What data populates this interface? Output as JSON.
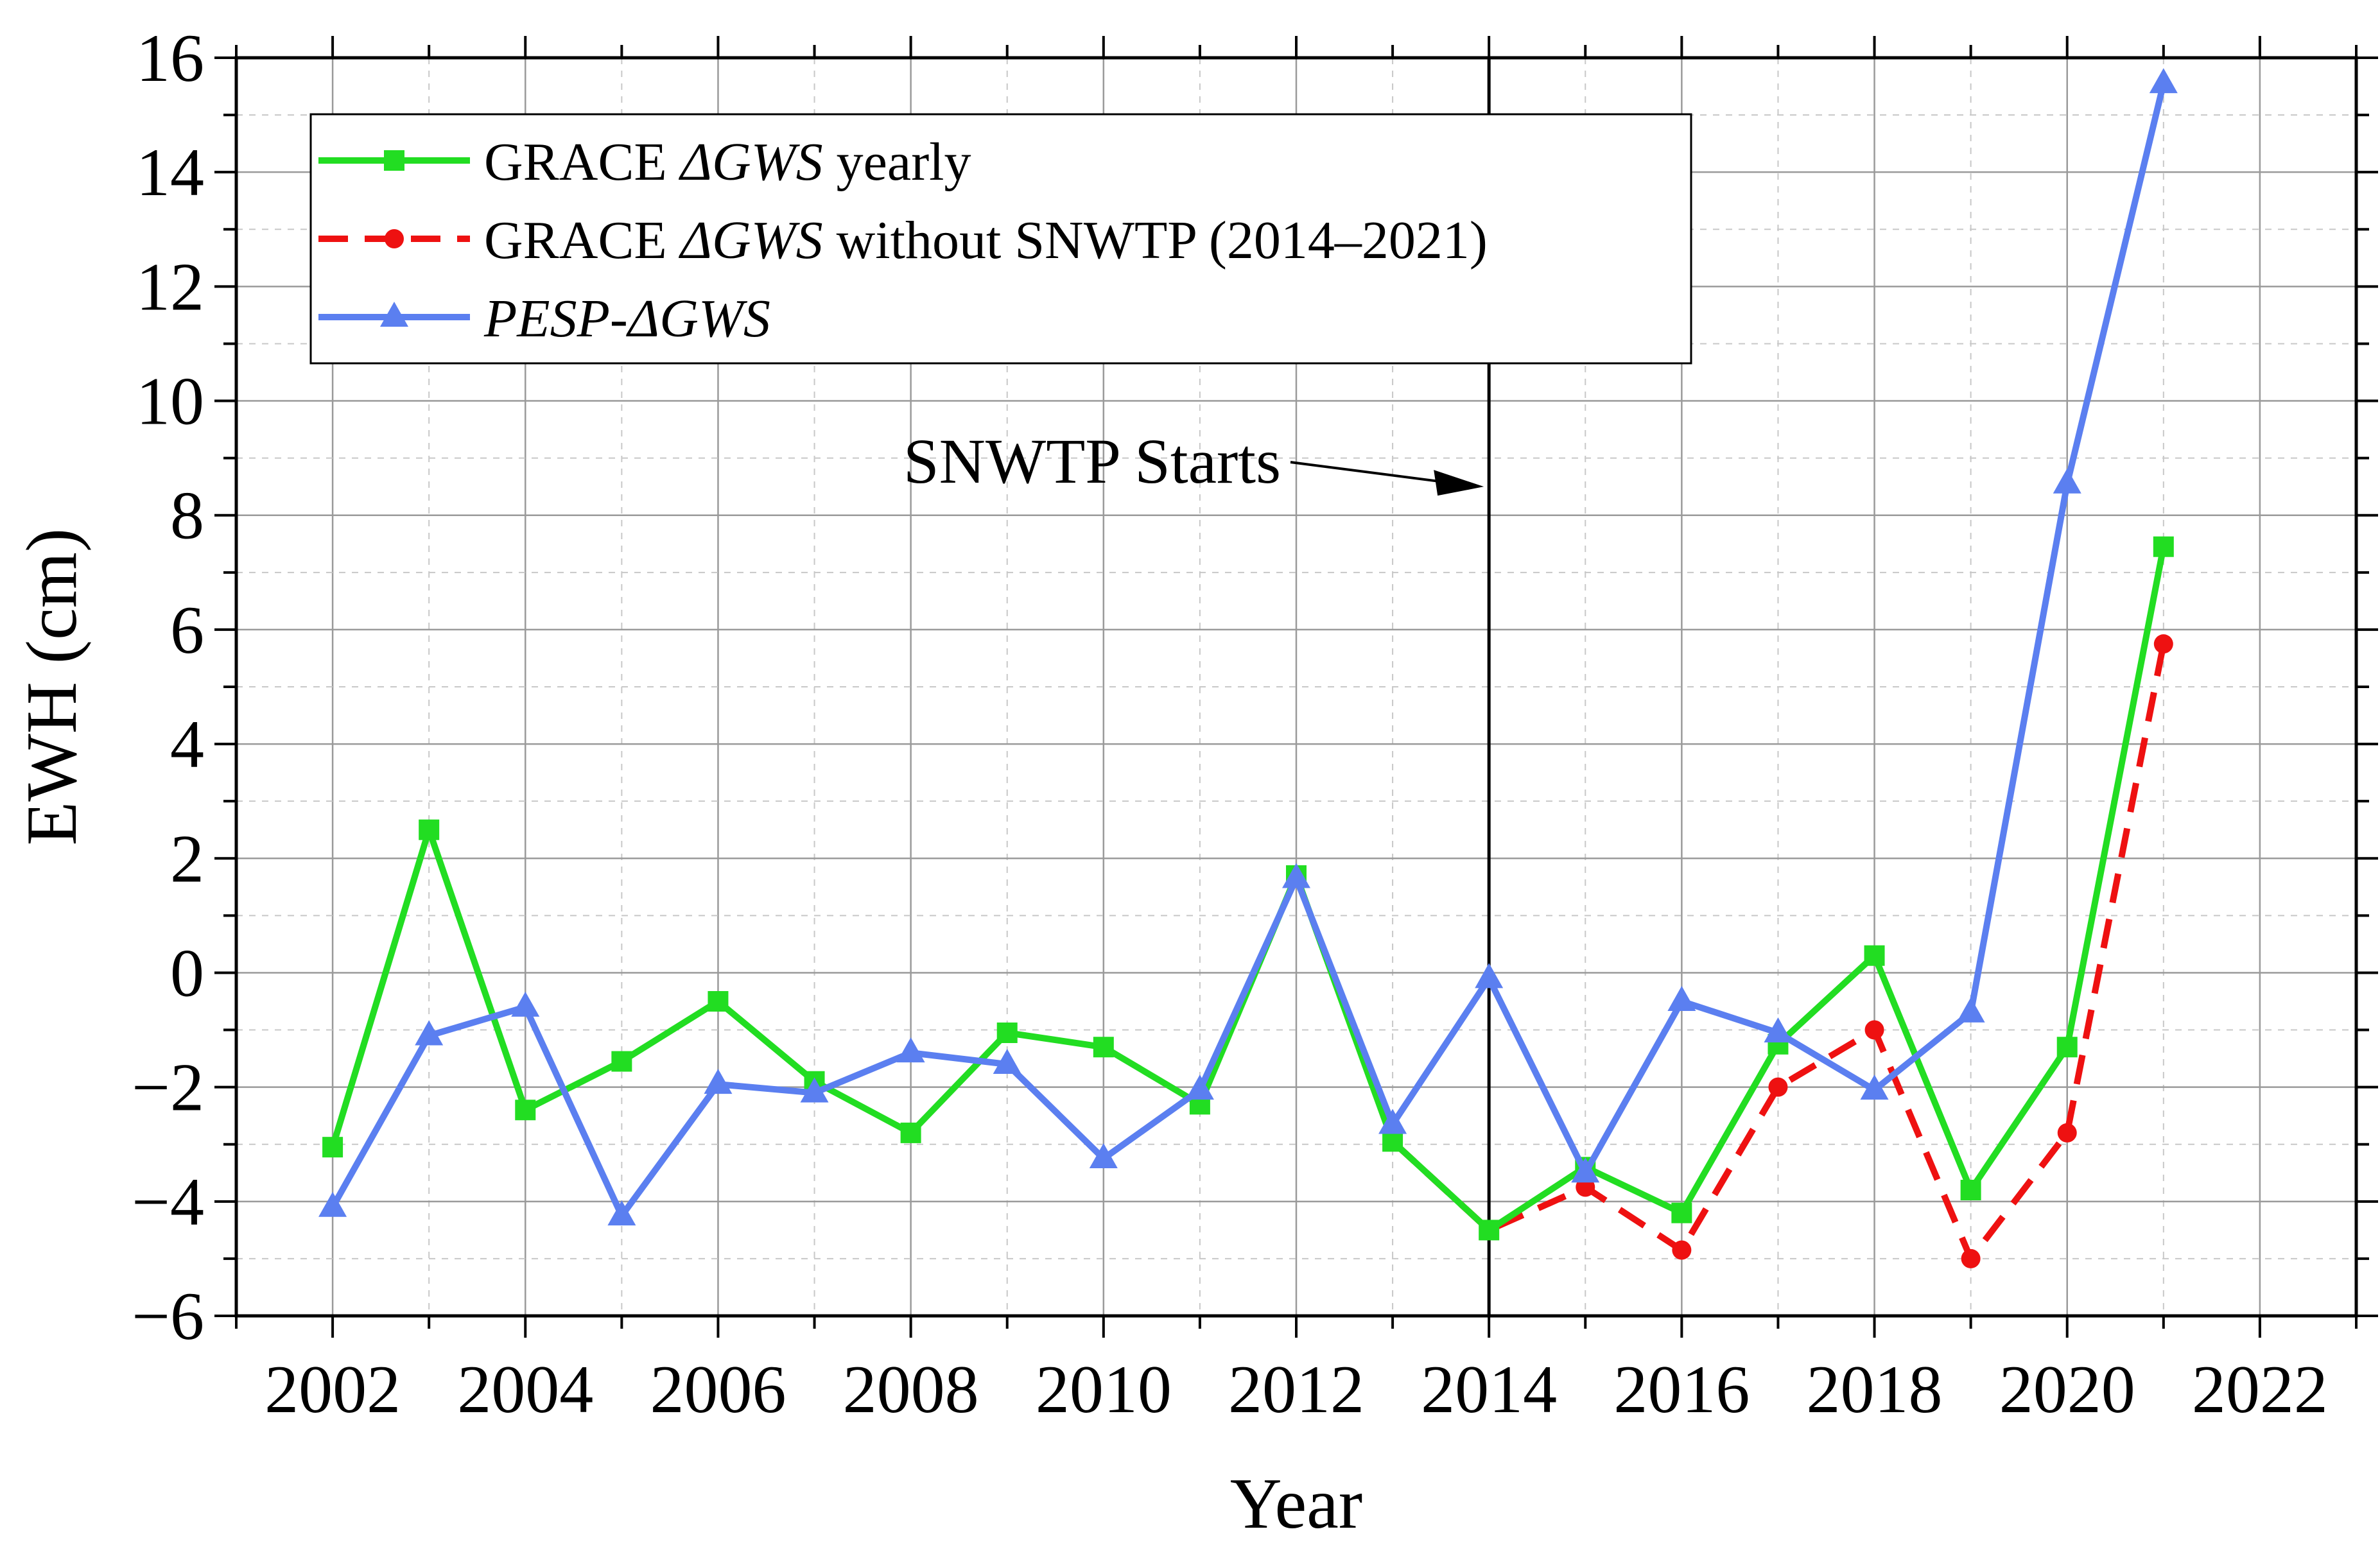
{
  "chart_data": {
    "type": "line",
    "title": "",
    "xlabel": "Year",
    "ylabel": "EWH (cm)",
    "xlim": [
      2001,
      2023
    ],
    "ylim": [
      -6,
      16
    ],
    "x_ticks": [
      2002,
      2004,
      2006,
      2008,
      2010,
      2012,
      2014,
      2016,
      2018,
      2020,
      2022
    ],
    "y_ticks": [
      -6,
      -4,
      -2,
      0,
      2,
      4,
      6,
      8,
      10,
      12,
      14,
      16
    ],
    "x_tick_labels": [
      "2002",
      "2004",
      "2006",
      "2008",
      "2010",
      "2012",
      "2014",
      "2016",
      "2018",
      "2020",
      "2022"
    ],
    "y_tick_labels": [
      "−6",
      "−4",
      "−2",
      "0",
      "2",
      "4",
      "6",
      "8",
      "10",
      "12",
      "14",
      "16"
    ],
    "grid": true,
    "legend_position": "top-left",
    "series": [
      {
        "name": "GRACE ΔGWS yearly",
        "legend": {
          "prefix": "GRACE ",
          "italic": "ΔGWS",
          "suffix": " yearly"
        },
        "color": "#22dd22",
        "marker": "square",
        "line_style": "solid",
        "x": [
          2002,
          2003,
          2004,
          2005,
          2006,
          2007,
          2008,
          2009,
          2010,
          2011,
          2012,
          2013,
          2014,
          2015,
          2016,
          2017,
          2018,
          2019,
          2020,
          2021
        ],
        "values": [
          -3.05,
          2.5,
          -2.4,
          -1.55,
          -0.5,
          -1.9,
          -2.8,
          -1.05,
          -1.3,
          -2.3,
          1.7,
          -2.95,
          -4.5,
          -3.4,
          -4.2,
          -1.25,
          0.3,
          -3.8,
          -1.3,
          7.45
        ]
      },
      {
        "name": "GRACE ΔGWS without SNWTP (2014–2021)",
        "legend": {
          "prefix": "GRACE ",
          "italic": "ΔGWS",
          "suffix": " without SNWTP (2014–2021)"
        },
        "color": "#ee1111",
        "marker": "circle",
        "line_style": "dashed",
        "x": [
          2013,
          2014,
          2015,
          2016,
          2017,
          2018,
          2019,
          2020,
          2021
        ],
        "values": [
          -2.95,
          -4.5,
          -3.75,
          -4.85,
          -2.0,
          -1.0,
          -5.0,
          -2.8,
          5.75
        ]
      },
      {
        "name": "PESP-ΔGWS",
        "legend": {
          "prefix": "",
          "italic": "PESP-ΔGWS",
          "suffix": ""
        },
        "color": "#5b7ff0",
        "marker": "triangle",
        "line_style": "solid",
        "x": [
          2002,
          2003,
          2004,
          2005,
          2006,
          2007,
          2008,
          2009,
          2010,
          2011,
          2012,
          2013,
          2014,
          2015,
          2016,
          2017,
          2018,
          2019,
          2020,
          2021
        ],
        "values": [
          -4.1,
          -1.1,
          -0.6,
          -4.25,
          -1.95,
          -2.1,
          -1.4,
          -1.6,
          -3.25,
          -2.05,
          1.65,
          -2.65,
          -0.1,
          -3.5,
          -0.5,
          -1.05,
          -2.05,
          -0.7,
          8.55,
          15.55
        ]
      }
    ],
    "annotations": [
      {
        "text": "SNWTP Starts",
        "type": "vertical-line-with-arrow",
        "x": 2014,
        "arrow_target_y": 8.5
      }
    ]
  }
}
